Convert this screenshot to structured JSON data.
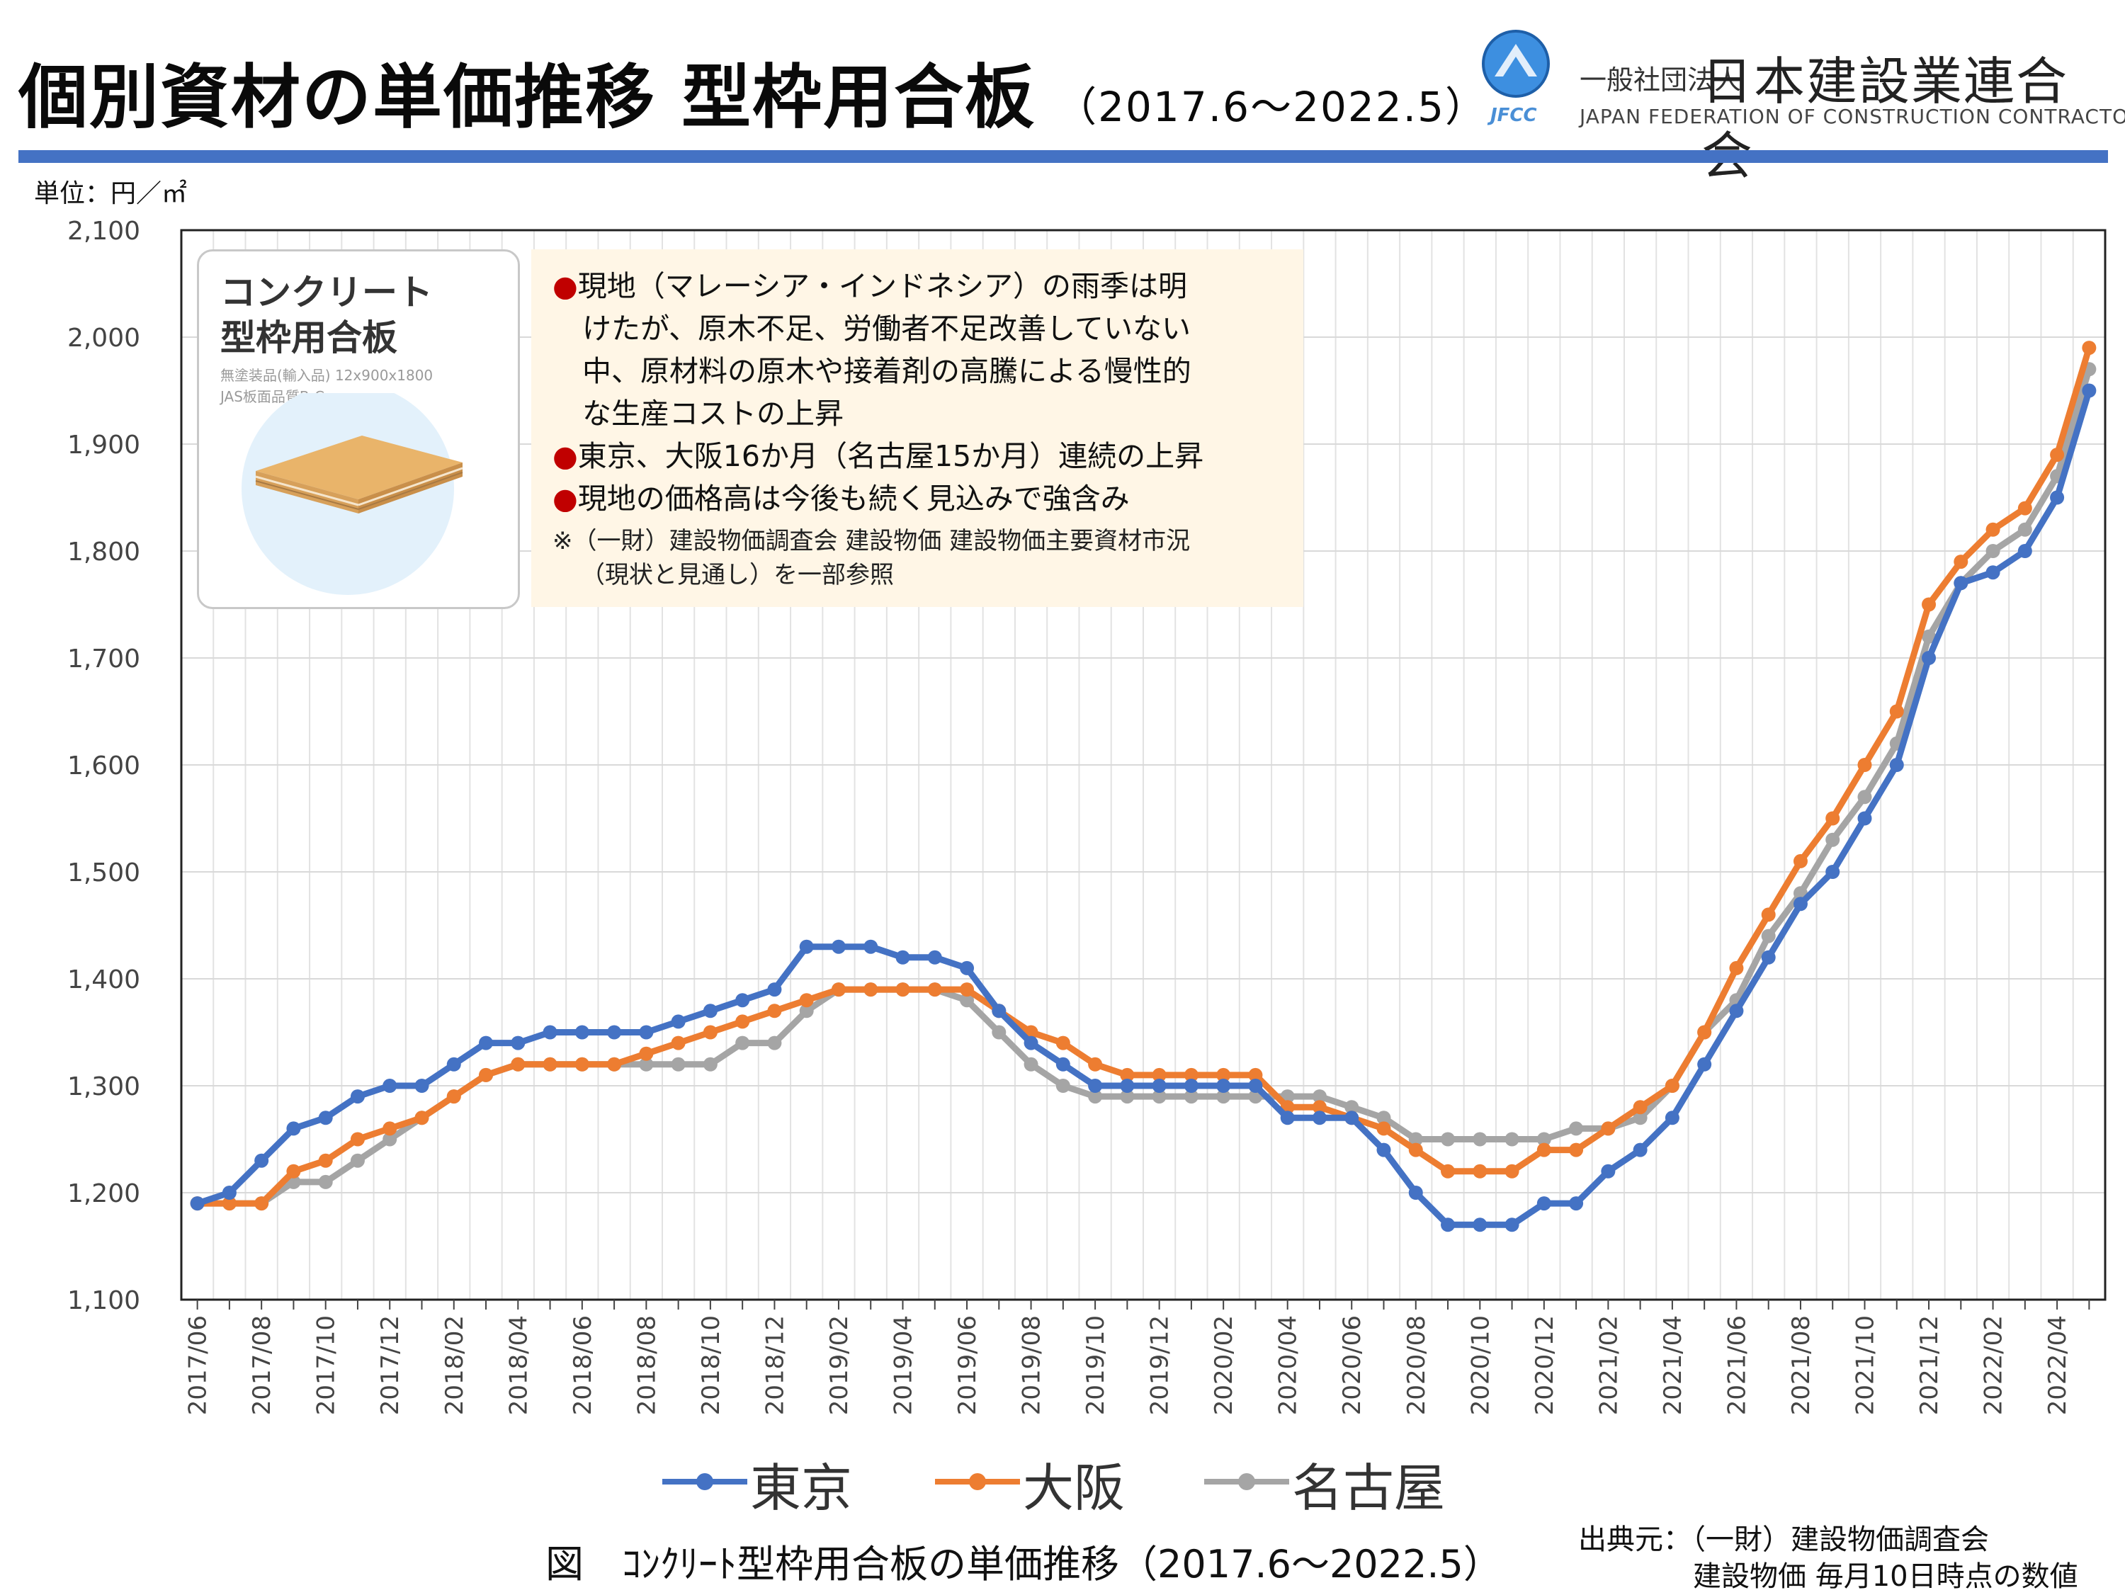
{
  "header": {
    "title": "個別資材の単価推移 型枠用合板",
    "period": "（2017.6～2022.5）",
    "org_name_small": "一般社団法人",
    "org_name": "日本建設業連合会",
    "org_name_en": "JAPAN FEDERATION OF CONSTRUCTION CONTRACTORS",
    "org_abbr": "JFCC"
  },
  "unit_label": "単位：円／㎡",
  "product": {
    "name_line1": "コンクリート",
    "name_line2": "型枠用合板",
    "spec_line1": "無塗装品(輸入品) 12x900x1800",
    "spec_line2": "JAS板面品質B-C"
  },
  "notes": {
    "items": [
      "現地（マレーシア・インドネシア）の雨季は明",
      "けたが、原木不足、労働者不足改善していない",
      "中、原材料の原木や接着剤の高騰による慢性的",
      "な生産コストの上昇",
      "東京、大阪16か月（名古屋15か月）連続の上昇",
      "現地の価格高は今後も続く見込みで強含み"
    ],
    "bullet": "●",
    "ref_line1": "※（一財）建設物価調査会 建設物価 建設物価主要資材市況",
    "ref_line2": "（現状と見通し）を一部参照"
  },
  "caption": "図　ｺﾝｸﾘｰﾄ型枠用合板の単価推移（2017.6～2022.5）",
  "source": {
    "line1": "出典元：（一財）建設物価調査会",
    "line2": "建設物価 毎月10日時点の数値"
  },
  "chart_data": {
    "type": "line",
    "ylabel": "単位：円／㎡",
    "ylim": [
      1100,
      2100
    ],
    "yticks": [
      "1,100",
      "1,200",
      "1,300",
      "1,400",
      "1,500",
      "1,600",
      "1,700",
      "1,800",
      "1,900",
      "2,000",
      "2,100"
    ],
    "ytick_values": [
      1100,
      1200,
      1300,
      1400,
      1500,
      1600,
      1700,
      1800,
      1900,
      2000,
      2100
    ],
    "x": [
      "2017/06",
      "2017/07",
      "2017/08",
      "2017/09",
      "2017/10",
      "2017/11",
      "2017/12",
      "2018/01",
      "2018/02",
      "2018/03",
      "2018/04",
      "2018/05",
      "2018/06",
      "2018/07",
      "2018/08",
      "2018/09",
      "2018/10",
      "2018/11",
      "2018/12",
      "2019/01",
      "2019/02",
      "2019/03",
      "2019/04",
      "2019/05",
      "2019/06",
      "2019/07",
      "2019/08",
      "2019/09",
      "2019/10",
      "2019/11",
      "2019/12",
      "2020/01",
      "2020/02",
      "2020/03",
      "2020/04",
      "2020/05",
      "2020/06",
      "2020/07",
      "2020/08",
      "2020/09",
      "2020/10",
      "2020/11",
      "2020/12",
      "2021/01",
      "2021/02",
      "2021/03",
      "2021/04",
      "2021/05",
      "2021/06",
      "2021/07",
      "2021/08",
      "2021/09",
      "2021/10",
      "2021/11",
      "2021/12",
      "2022/01",
      "2022/02",
      "2022/03",
      "2022/04",
      "2022/05"
    ],
    "xticks": [
      "2017/06",
      "2017/08",
      "2017/10",
      "2017/12",
      "2018/02",
      "2018/04",
      "2018/06",
      "2018/08",
      "2018/10",
      "2018/12",
      "2019/02",
      "2019/04",
      "2019/06",
      "2019/08",
      "2019/10",
      "2019/12",
      "2020/02",
      "2020/04",
      "2020/06",
      "2020/08",
      "2020/10",
      "2020/12",
      "2021/02",
      "2021/04",
      "2021/06",
      "2021/08",
      "2021/10",
      "2021/12",
      "2022/02",
      "2022/04"
    ],
    "grid": true,
    "legend_position": "bottom",
    "series": [
      {
        "name": "名古屋",
        "color": "#a5a5a5",
        "values": [
          1190,
          1190,
          1190,
          1210,
          1210,
          1230,
          1250,
          1270,
          1290,
          1310,
          1320,
          1320,
          1320,
          1320,
          1320,
          1320,
          1320,
          1340,
          1340,
          1370,
          1390,
          1390,
          1390,
          1390,
          1380,
          1350,
          1320,
          1300,
          1290,
          1290,
          1290,
          1290,
          1290,
          1290,
          1290,
          1290,
          1280,
          1270,
          1250,
          1250,
          1250,
          1250,
          1250,
          1260,
          1260,
          1270,
          1300,
          1350,
          1380,
          1440,
          1480,
          1530,
          1570,
          1620,
          1720,
          1770,
          1800,
          1820,
          1870,
          1970
        ]
      },
      {
        "name": "大阪",
        "color": "#ed7d31",
        "values": [
          1190,
          1190,
          1190,
          1220,
          1230,
          1250,
          1260,
          1270,
          1290,
          1310,
          1320,
          1320,
          1320,
          1320,
          1330,
          1340,
          1350,
          1360,
          1370,
          1380,
          1390,
          1390,
          1390,
          1390,
          1390,
          1370,
          1350,
          1340,
          1320,
          1310,
          1310,
          1310,
          1310,
          1310,
          1280,
          1280,
          1270,
          1260,
          1240,
          1220,
          1220,
          1220,
          1240,
          1240,
          1260,
          1280,
          1300,
          1350,
          1410,
          1460,
          1510,
          1550,
          1600,
          1650,
          1750,
          1790,
          1820,
          1840,
          1890,
          1990
        ]
      },
      {
        "name": "東京",
        "color": "#4472c4",
        "values": [
          1190,
          1200,
          1230,
          1260,
          1270,
          1290,
          1300,
          1300,
          1320,
          1340,
          1340,
          1350,
          1350,
          1350,
          1350,
          1360,
          1370,
          1380,
          1390,
          1430,
          1430,
          1430,
          1420,
          1420,
          1410,
          1370,
          1340,
          1320,
          1300,
          1300,
          1300,
          1300,
          1300,
          1300,
          1270,
          1270,
          1270,
          1240,
          1200,
          1170,
          1170,
          1170,
          1190,
          1190,
          1220,
          1240,
          1270,
          1320,
          1370,
          1420,
          1470,
          1500,
          1550,
          1600,
          1700,
          1770,
          1780,
          1800,
          1850,
          1950
        ]
      }
    ],
    "legend_order": [
      "東京",
      "大阪",
      "名古屋"
    ],
    "legend_colors": {
      "東京": "#4472c4",
      "大阪": "#ed7d31",
      "名古屋": "#a5a5a5"
    }
  }
}
